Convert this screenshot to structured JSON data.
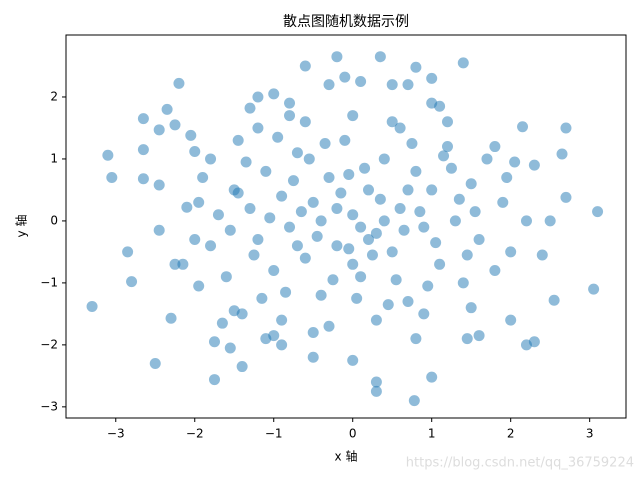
{
  "chart_data": {
    "type": "scatter",
    "title": "散点图随机数据示例",
    "xlabel": "x 轴",
    "ylabel": "y 轴",
    "watermark": "https://blog.csdn.net/qq_36759224",
    "color": "#1f77b4",
    "xlim": [
      -3.63,
      3.46
    ],
    "ylim": [
      -3.18,
      3.0
    ],
    "xticks": [
      {
        "value": -3,
        "label": "−3"
      },
      {
        "value": -2,
        "label": "−2"
      },
      {
        "value": -1,
        "label": "−1"
      },
      0,
      1,
      2,
      3
    ],
    "yticks": [
      {
        "value": -3,
        "label": "−3"
      },
      {
        "value": -2,
        "label": "−2"
      },
      {
        "value": -1,
        "label": "−1"
      },
      0,
      1,
      2
    ],
    "x": [
      -3.3,
      -3.1,
      -3.05,
      -2.85,
      -2.8,
      -2.65,
      -2.65,
      -2.65,
      -2.5,
      -2.45,
      -2.45,
      -2.45,
      -2.35,
      -2.3,
      -2.25,
      -2.2,
      -2.25,
      -2.15,
      -2.1,
      -2.05,
      -2.0,
      -1.95,
      -1.8,
      -1.75,
      -1.75,
      -1.65,
      -1.55,
      -1.5,
      -1.45,
      -1.4,
      -1.3,
      -1.2,
      -1.1,
      -1.0,
      -0.9,
      -0.8,
      -0.6,
      -0.5,
      -0.3,
      -0.2,
      -0.1,
      0.0,
      0.1,
      0.3,
      0.3,
      0.35,
      0.5,
      0.7,
      0.78,
      0.8,
      1.0,
      1.0,
      1.1,
      1.4,
      1.45,
      1.6,
      1.8,
      2.0,
      2.05,
      2.15,
      2.2,
      2.3,
      2.3,
      2.5,
      2.7,
      2.7,
      2.65,
      3.05,
      3.1,
      2.55,
      2.2,
      2.4,
      -1.5,
      -1.3,
      -1.2,
      -1.1,
      -1.0,
      -0.9,
      -0.8,
      -0.7,
      -0.6,
      -0.5,
      -0.4,
      -0.3,
      -0.2,
      -0.1,
      0.0,
      0.1,
      0.2,
      0.3,
      0.4,
      0.5,
      0.6,
      0.7,
      0.8,
      0.9,
      1.0,
      1.1,
      1.2,
      1.3,
      1.4,
      1.5,
      1.6,
      1.7,
      1.8,
      1.9,
      -1.6,
      -1.7,
      -1.8,
      -1.9,
      -1.4,
      -1.2,
      -0.9,
      -0.6,
      -0.3,
      0.0,
      0.3,
      0.6,
      0.9,
      1.2,
      1.5,
      -0.45,
      0.15,
      -0.75,
      0.55,
      -0.25,
      0.35,
      -0.05,
      0.85,
      -1.05,
      1.05,
      -0.55,
      0.45,
      -1.35,
      1.25,
      -0.15,
      0.25,
      -0.85,
      0.75,
      -1.25,
      1.35,
      -0.35,
      0.05,
      -0.65,
      0.65,
      -0.95,
      0.95,
      -1.55,
      1.55,
      -0.05,
      0.1,
      -0.4,
      0.4,
      -0.2,
      0.2,
      -1.15,
      1.15,
      -1.45,
      1.45,
      -0.7,
      0.7,
      -2.0,
      2.0,
      -1.95,
      1.95,
      0.0,
      0.5,
      -0.5,
      0.8,
      -0.8,
      1.0,
      -1.0
    ],
    "values": [
      -1.38,
      1.06,
      0.7,
      -0.5,
      -0.98,
      1.65,
      1.15,
      0.68,
      -2.3,
      1.47,
      0.58,
      -0.15,
      1.8,
      -1.57,
      1.55,
      2.22,
      -0.7,
      -0.7,
      0.22,
      1.38,
      1.12,
      -1.05,
      1.0,
      -2.56,
      -1.95,
      -1.65,
      -2.05,
      -1.45,
      1.3,
      -2.35,
      1.82,
      2.0,
      -1.9,
      2.05,
      -2.0,
      1.7,
      2.5,
      -2.2,
      2.2,
      2.65,
      2.32,
      -2.25,
      2.25,
      -2.6,
      -2.75,
      2.65,
      2.2,
      2.2,
      -2.9,
      2.48,
      2.3,
      -2.52,
      1.85,
      2.55,
      -1.9,
      -1.85,
      1.2,
      -1.6,
      0.95,
      1.52,
      -2.0,
      -1.95,
      0.9,
      0.0,
      1.5,
      0.38,
      1.08,
      -1.1,
      0.15,
      -1.28,
      0.0,
      -0.55,
      0.5,
      0.2,
      -0.3,
      0.8,
      -0.8,
      0.4,
      -0.1,
      1.1,
      -0.6,
      0.3,
      -1.2,
      0.7,
      -0.4,
      1.3,
      0.1,
      -0.9,
      0.5,
      -0.2,
      1.0,
      -0.5,
      0.2,
      -1.3,
      0.8,
      -0.1,
      0.5,
      -0.7,
      1.2,
      0.0,
      -1.0,
      0.6,
      -0.3,
      1.0,
      -0.8,
      0.3,
      -0.9,
      0.1,
      -0.4,
      0.7,
      -1.5,
      1.5,
      -1.6,
      1.6,
      -1.7,
      1.7,
      -1.6,
      1.5,
      -1.5,
      1.6,
      -1.4,
      -0.25,
      0.85,
      0.65,
      -0.95,
      -0.95,
      0.35,
      -0.45,
      0.15,
      0.05,
      -0.35,
      1.0,
      -1.35,
      0.95,
      0.85,
      0.45,
      -0.55,
      -1.15,
      1.25,
      -0.55,
      0.35,
      1.25,
      -1.25,
      0.15,
      -0.15,
      1.35,
      -1.05,
      -0.15,
      0.15,
      0.75,
      -0.1,
      0.0,
      0.0,
      0.2,
      -0.3,
      -1.25,
      1.05,
      0.45,
      -0.55,
      -0.4,
      0.5,
      -0.3,
      -0.5,
      0.3,
      0.7,
      -0.7,
      1.6,
      -1.8,
      -1.9,
      1.9,
      1.9,
      -1.85
    ]
  }
}
